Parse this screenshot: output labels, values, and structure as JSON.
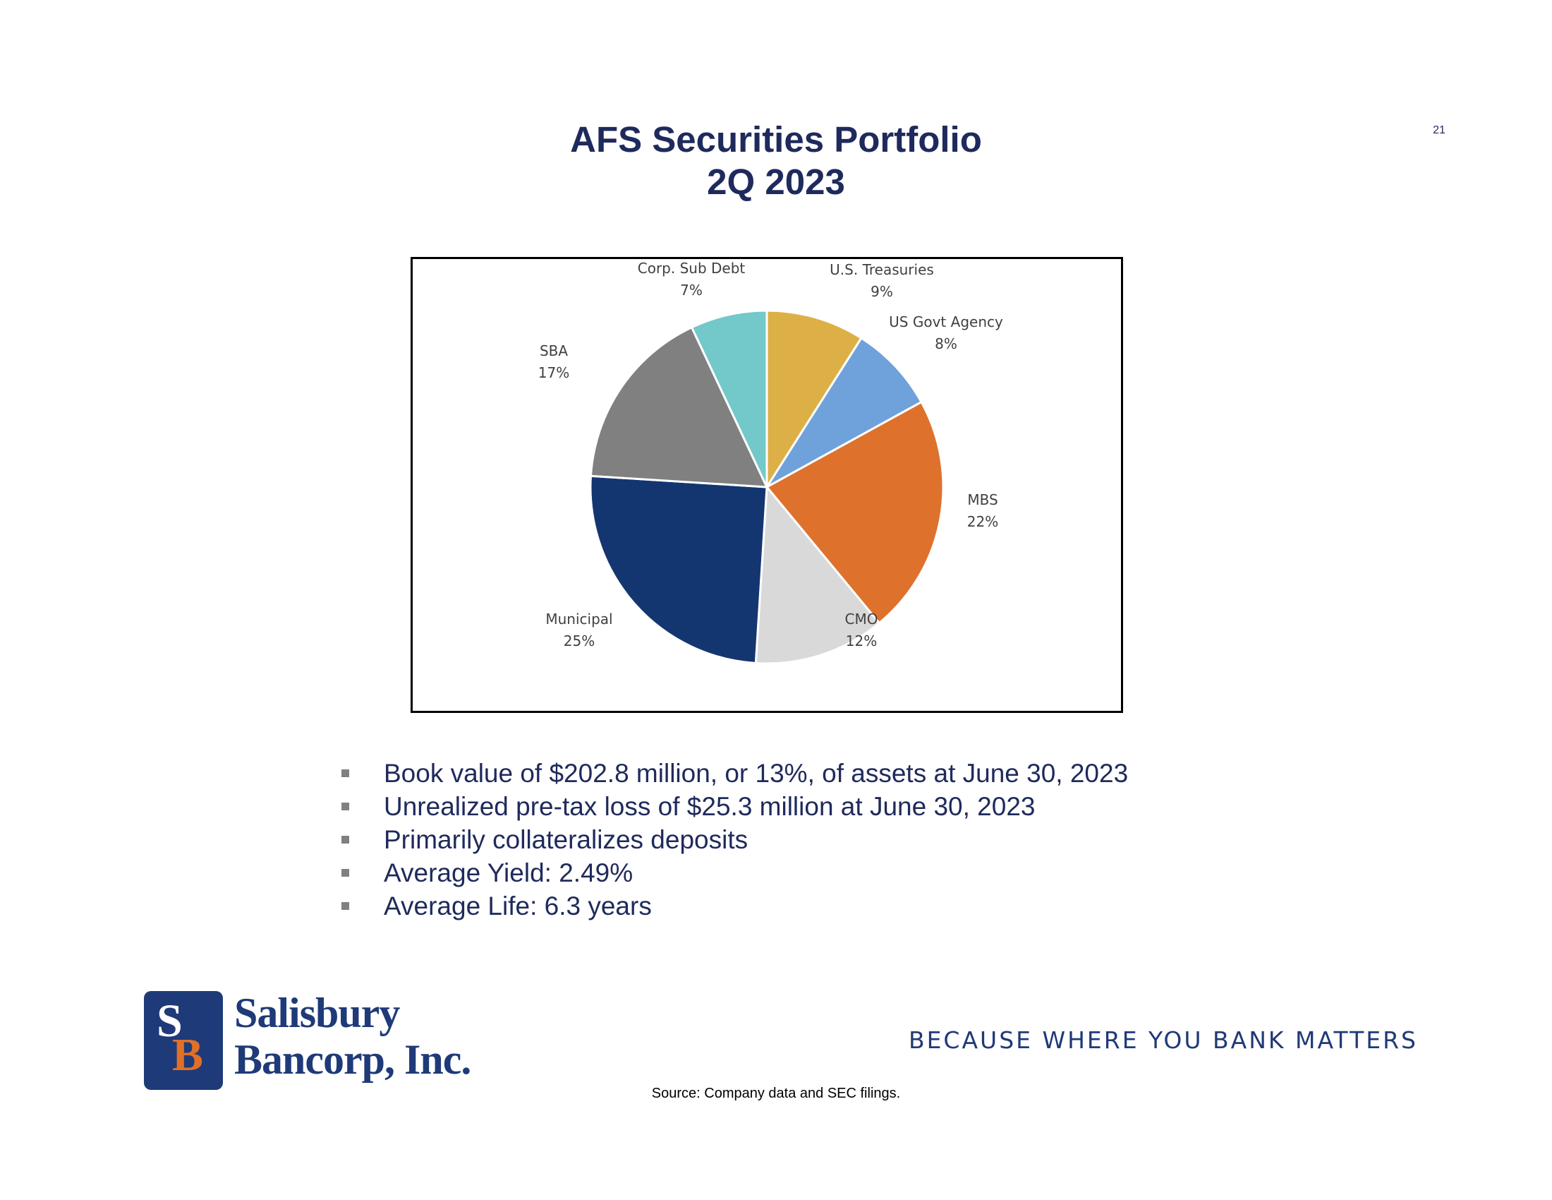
{
  "page_number": "21",
  "title": {
    "line1": "AFS Securities Portfolio",
    "line2": "2Q 2023"
  },
  "chart_data": {
    "type": "pie",
    "start_angle": "12 o'clock",
    "direction": "clockwise",
    "slices": [
      {
        "name": "U.S. Treasuries",
        "value": 9,
        "label": "9%",
        "color": "#DDB047"
      },
      {
        "name": "US Govt Agency",
        "value": 8,
        "label": "8%",
        "color": "#6FA2DB"
      },
      {
        "name": "MBS",
        "value": 22,
        "label": "22%",
        "color": "#DE722D"
      },
      {
        "name": "CMO",
        "value": 12,
        "label": "12%",
        "color": "#D9D9D9"
      },
      {
        "name": "Municipal",
        "value": 25,
        "label": "25%",
        "color": "#143670"
      },
      {
        "name": "SBA",
        "value": 17,
        "label": "17%",
        "color": "#808080"
      },
      {
        "name": "Corp. Sub Debt",
        "value": 7,
        "label": "7%",
        "color": "#73C8CA"
      }
    ]
  },
  "bullets": [
    "Book value of $202.8 million, or 13%, of assets at June 30, 2023",
    "Unrealized pre-tax loss of $25.3 million at June 30, 2023",
    "Primarily collateralizes deposits",
    "Average Yield: 2.49%",
    "Average Life: 6.3 years"
  ],
  "logo": {
    "mark_s": "S",
    "mark_b": "B",
    "line1": "Salisbury",
    "line2": "Bancorp, Inc."
  },
  "tagline": "BECAUSE WHERE YOU BANK MATTERS",
  "source": "Source: Company data and SEC  filings."
}
